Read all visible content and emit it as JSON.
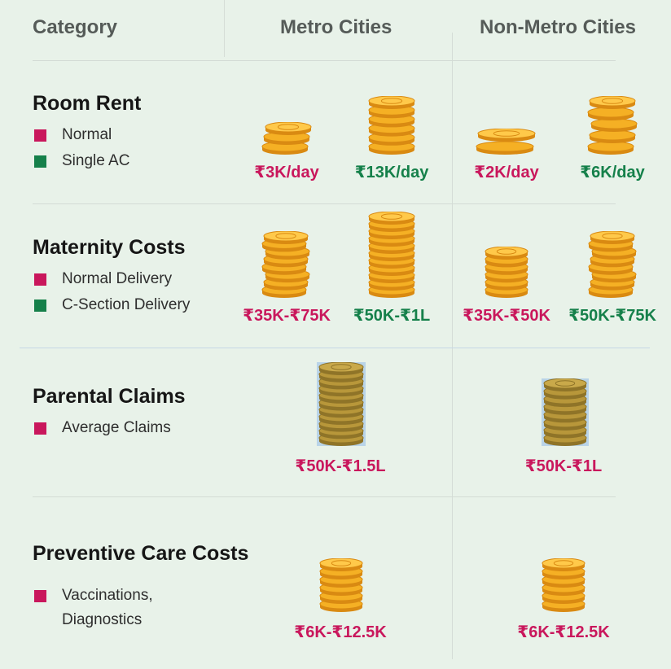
{
  "header": {
    "category": "Category",
    "metro": "Metro Cities",
    "non_metro": "Non-Metro Cities"
  },
  "colors": {
    "background": "#e8f2e9",
    "normal_marker": "#c9175c",
    "alternate_marker": "#15804a",
    "coin_gold": "#f5b024",
    "coin_olive": "#b8973a"
  },
  "rows": [
    {
      "title": "Room Rent",
      "legend": [
        {
          "label": "Normal",
          "color": "pink"
        },
        {
          "label": "Single AC",
          "color": "green"
        }
      ],
      "values": {
        "metro_normal": "₹3K/day",
        "metro_alt": "₹13K/day",
        "nonmetro_normal": "₹2K/day",
        "nonmetro_alt": "₹6K/day"
      }
    },
    {
      "title": "Maternity Costs",
      "legend": [
        {
          "label": "Normal Delivery",
          "color": "pink"
        },
        {
          "label": "C-Section Delivery",
          "color": "green"
        }
      ],
      "values": {
        "metro_normal": "₹35K-₹75K",
        "metro_alt": "₹50K-₹1L",
        "nonmetro_normal": "₹35K-₹50K",
        "nonmetro_alt": "₹50K-₹75K"
      }
    },
    {
      "title": "Parental Claims",
      "legend": [
        {
          "label": "Average Claims",
          "color": "pink"
        }
      ],
      "values": {
        "metro": "₹50K-₹1.5L",
        "nonmetro": "₹50K-₹1L"
      }
    },
    {
      "title": "Preventive Care Costs",
      "legend": [
        {
          "label": "Vaccinations,",
          "color": "pink"
        },
        {
          "label": "Diagnostics",
          "color": "none"
        }
      ],
      "values": {
        "metro": "₹6K-₹12.5K",
        "nonmetro": "₹6K-₹12.5K"
      }
    }
  ]
}
